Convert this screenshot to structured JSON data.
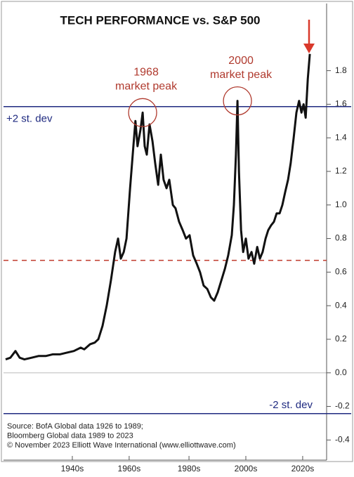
{
  "chart_data": {
    "type": "line",
    "title": "TECH PERFORMANCE vs. S&P 500",
    "x": [
      1922.7,
      1924.3,
      1926,
      1927.4,
      1929,
      1931.4,
      1933.7,
      1936.1,
      1938.4,
      1940.8,
      1943.1,
      1945.5,
      1947.8,
      1949,
      1950.9,
      1952.5,
      1953.7,
      1955.1,
      1956.5,
      1957.9,
      1959.3,
      1960.3,
      1961.2,
      1962.2,
      1963.1,
      1964.3,
      1965.4,
      1966.1,
      1966.8,
      1967.8,
      1968.5,
      1969.2,
      1969.9,
      1970.8,
      1971.8,
      1972.7,
      1973.7,
      1974.6,
      1975.5,
      1976.5,
      1977.4,
      1978.6,
      1979.5,
      1980.7,
      1981.9,
      1983,
      1984.2,
      1985.4,
      1986.6,
      1987.7,
      1988.9,
      1990.1,
      1991.3,
      1992.4,
      1993.6,
      1994.8,
      1996,
      1997.1,
      1998.3,
      1999,
      1999.7,
      2000.2,
      2000.7,
      2001.4,
      2002.1,
      2003,
      2003.9,
      2004.9,
      2005.8,
      2006.8,
      2007.7,
      2008.6,
      2009.6,
      2010.5,
      2011.5,
      2012.4,
      2013.3,
      2014.3,
      2015.2,
      2016.2,
      2017.1,
      2018,
      2019,
      2019.9,
      2020.8,
      2021.6,
      2022.3,
      2023,
      2023.7,
      2024.4
    ],
    "series": [
      {
        "color": "#111111",
        "values": [
          0.08,
          0.09,
          0.13,
          0.09,
          0.08,
          0.09,
          0.1,
          0.1,
          0.11,
          0.11,
          0.12,
          0.13,
          0.15,
          0.14,
          0.17,
          0.18,
          0.2,
          0.28,
          0.4,
          0.55,
          0.72,
          0.8,
          0.68,
          0.72,
          0.8,
          1.1,
          1.35,
          1.5,
          1.35,
          1.45,
          1.55,
          1.35,
          1.3,
          1.48,
          1.38,
          1.25,
          1.12,
          1.3,
          1.15,
          1.1,
          1.15,
          1.0,
          0.98,
          0.9,
          0.85,
          0.8,
          0.82,
          0.7,
          0.65,
          0.6,
          0.52,
          0.5,
          0.45,
          0.43,
          0.48,
          0.55,
          0.62,
          0.7,
          0.82,
          1.0,
          1.3,
          1.62,
          1.2,
          0.85,
          0.72,
          0.8,
          0.68,
          0.72,
          0.65,
          0.75,
          0.68,
          0.72,
          0.8,
          0.85,
          0.88,
          0.9,
          0.95,
          0.95,
          1.0,
          1.08,
          1.15,
          1.25,
          1.4,
          1.55,
          1.62,
          1.55,
          1.6,
          1.52,
          1.75,
          1.9
        ]
      }
    ],
    "xlim": [
      1922,
      2030
    ],
    "xticks": [
      {
        "value": 1945,
        "label": "1940s"
      },
      {
        "value": 1964,
        "label": "1960s"
      },
      {
        "value": 1984,
        "label": "1980s"
      },
      {
        "value": 2003,
        "label": "2000s"
      },
      {
        "value": 2022,
        "label": "2020s"
      }
    ],
    "ylim": [
      -0.52,
      2.2
    ],
    "yticks": [
      -0.4,
      -0.2,
      {
        "value": 0,
        "label": "0.0"
      },
      0.2,
      0.4,
      0.6,
      0.8,
      {
        "value": 1,
        "label": "1.0"
      },
      1.2,
      1.4,
      1.6,
      1.8
    ],
    "reference_lines": [
      {
        "value": 1.586,
        "label": "+2 st. dev",
        "color": "#1f2a80",
        "style": "solid"
      },
      {
        "value": 0.67,
        "color": "#c0392b",
        "style": "dashed"
      },
      {
        "value": -0.243,
        "label": "-2 st. dev",
        "color": "#1f2a80",
        "style": "solid"
      }
    ],
    "annotations": [
      {
        "text": [
          "1968",
          "market peak"
        ],
        "x": 1968.5,
        "y": 1.55,
        "color": "#b03a2e"
      },
      {
        "text": [
          "2000",
          "market peak"
        ],
        "x": 2000.2,
        "y": 1.62,
        "color": "#b03a2e"
      }
    ],
    "source": [
      "Source: BofA Global data 1926 to 1989;",
      "Bloomberg Global data 1989 to 2023",
      "© November 2023 Elliott Wave International (www.elliottwave.com)"
    ]
  }
}
